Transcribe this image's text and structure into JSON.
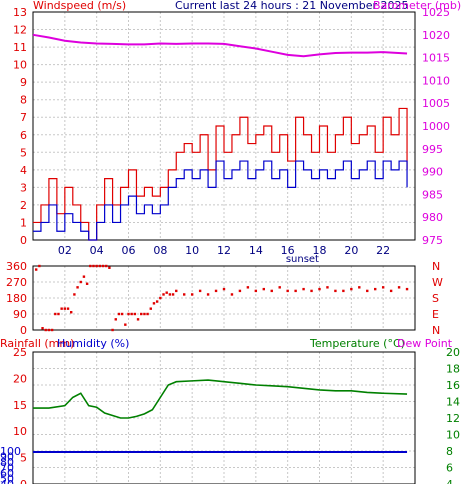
{
  "header": {
    "left_title": "Windspeed (m/s)",
    "center_title": "Current last 24 hours : 21 November 2025",
    "right_title": "Barometer (mb)"
  },
  "colors": {
    "red": "#e00000",
    "blue": "#0000cc",
    "magenta": "#dd00dd",
    "green": "#008000",
    "grid": "#c8c8c8",
    "frame": "#000000"
  },
  "chart_data": [
    {
      "type": "line",
      "name": "wind-barometer",
      "left_axis": {
        "label": "Windspeed (m/s)",
        "ylim": [
          0,
          13
        ],
        "ticks": [
          0,
          1,
          2,
          3,
          4,
          5,
          6,
          7,
          8,
          9,
          10,
          11,
          12,
          13
        ]
      },
      "right_axis": {
        "label": "Barometer (mb)",
        "ylim": [
          975,
          1025
        ],
        "ticks": [
          975,
          980,
          985,
          990,
          995,
          1000,
          1005,
          1010,
          1015,
          1020,
          1025
        ]
      },
      "x_axis": {
        "range_hours": [
          0,
          24
        ],
        "tick_labels": [
          "02",
          "04",
          "06",
          "08",
          "10",
          "12",
          "14",
          "16",
          "18",
          "20",
          "22"
        ],
        "tick_hours": [
          2,
          4,
          6,
          8,
          10,
          12,
          14,
          16,
          18,
          20,
          22
        ]
      },
      "annotation": {
        "text": "sunset",
        "hour": 16.8
      },
      "barometer": {
        "x": [
          0,
          1,
          2,
          3,
          4,
          5,
          6,
          7,
          8,
          9,
          10,
          11,
          12,
          13,
          14,
          15,
          16,
          17,
          18,
          19,
          20,
          21,
          22,
          23.5
        ],
        "y": [
          1020,
          1019.4,
          1018.7,
          1018.3,
          1018.1,
          1018.0,
          1017.9,
          1017.9,
          1018.1,
          1018.0,
          1018.1,
          1018.1,
          1018.0,
          1017.5,
          1017.0,
          1016.3,
          1015.6,
          1015.3,
          1015.7,
          1016.0,
          1016.1,
          1016.1,
          1016.2,
          1015.9
        ]
      },
      "wind_gust": {
        "x": [
          0,
          0.5,
          1,
          1.5,
          2,
          2.5,
          3,
          3.5,
          4,
          4.5,
          5,
          5.5,
          6,
          6.5,
          7,
          7.5,
          8,
          8.5,
          9,
          9.5,
          10,
          10.5,
          11,
          11.5,
          12,
          12.5,
          13,
          13.5,
          14,
          14.5,
          15,
          15.5,
          16,
          16.5,
          17,
          17.5,
          18,
          18.5,
          19,
          19.5,
          20,
          20.5,
          21,
          21.5,
          22,
          22.5,
          23,
          23.5
        ],
        "y": [
          1,
          2,
          3.5,
          1.5,
          3,
          2,
          1,
          0,
          2,
          3.5,
          2,
          3,
          4,
          2.5,
          3,
          2.5,
          3,
          4,
          5,
          5.5,
          5,
          6,
          4,
          6.5,
          5,
          6,
          7,
          5.5,
          6,
          6.5,
          5,
          6,
          4.5,
          7,
          6,
          5,
          6.5,
          5,
          6,
          7,
          5.5,
          6,
          6.5,
          5,
          7,
          6,
          7.5,
          4
        ]
      },
      "wind_avg": {
        "x": [
          0,
          0.5,
          1,
          1.5,
          2,
          2.5,
          3,
          3.5,
          4,
          4.5,
          5,
          5.5,
          6,
          6.5,
          7,
          7.5,
          8,
          8.5,
          9,
          9.5,
          10,
          10.5,
          11,
          11.5,
          12,
          12.5,
          13,
          13.5,
          14,
          14.5,
          15,
          15.5,
          16,
          16.5,
          17,
          17.5,
          18,
          18.5,
          19,
          19.5,
          20,
          20.5,
          21,
          21.5,
          22,
          22.5,
          23,
          23.5
        ],
        "y": [
          0.5,
          1,
          2,
          0.5,
          1.5,
          1,
          0.5,
          0,
          1,
          2,
          1,
          2,
          2.5,
          1.5,
          2,
          1.5,
          2,
          3,
          3.5,
          4,
          3.5,
          4,
          3,
          4.5,
          3.5,
          4,
          4.5,
          3.5,
          4,
          4.5,
          3.5,
          4,
          3,
          4.5,
          4,
          3.5,
          4,
          3.5,
          4,
          4.5,
          3.5,
          4,
          4.5,
          3.5,
          4.5,
          4,
          4.5,
          3
        ]
      }
    },
    {
      "type": "scatter",
      "name": "wind-direction",
      "left_axis": {
        "ylim": [
          0,
          360
        ],
        "ticks": [
          0,
          90,
          180,
          270,
          360
        ]
      },
      "right_labels": [
        "N",
        "W",
        "S",
        "E",
        "N"
      ],
      "points": {
        "x": [
          0.2,
          0.4,
          0.6,
          0.8,
          1.0,
          1.2,
          1.4,
          1.6,
          1.8,
          2.0,
          2.2,
          2.4,
          2.6,
          2.8,
          3.0,
          3.2,
          3.4,
          3.6,
          3.8,
          4.0,
          4.2,
          4.4,
          4.6,
          4.8,
          5.0,
          5.2,
          5.4,
          5.6,
          5.8,
          6.0,
          6.2,
          6.4,
          6.6,
          6.8,
          7.0,
          7.2,
          7.4,
          7.6,
          7.8,
          8.0,
          8.2,
          8.4,
          8.6,
          8.8,
          9.0,
          9.5,
          10,
          10.5,
          11,
          11.5,
          12,
          12.5,
          13,
          13.5,
          14,
          14.5,
          15,
          15.5,
          16,
          16.5,
          17,
          17.5,
          18,
          18.5,
          19,
          19.5,
          20,
          20.5,
          21,
          21.5,
          22,
          22.5,
          23,
          23.5
        ],
        "y": [
          340,
          360,
          10,
          0,
          0,
          0,
          90,
          90,
          120,
          120,
          120,
          100,
          200,
          240,
          270,
          300,
          260,
          360,
          360,
          360,
          360,
          360,
          360,
          350,
          0,
          60,
          90,
          90,
          30,
          90,
          90,
          90,
          60,
          90,
          90,
          90,
          120,
          150,
          160,
          180,
          200,
          210,
          200,
          200,
          220,
          200,
          200,
          220,
          200,
          220,
          230,
          200,
          220,
          240,
          220,
          230,
          220,
          240,
          220,
          220,
          230,
          220,
          230,
          240,
          220,
          220,
          230,
          240,
          220,
          230,
          240,
          220,
          240,
          230
        ]
      }
    },
    {
      "type": "line",
      "name": "temperature-humidity",
      "left_labels": {
        "title_left": "Rainfall (mm)",
        "title_mid": "Humidity (%)",
        "rain_ticks": [
          0,
          5,
          10,
          15,
          20,
          25
        ],
        "humidity_ticks": [
          40,
          50,
          60,
          70,
          80,
          90,
          100
        ],
        "humidity_mapping_note": ""
      },
      "right_axis": {
        "label": "Temperature (°C)",
        "ylim": [
          4,
          20
        ],
        "ticks": [
          4,
          6,
          8,
          10,
          12,
          14,
          16,
          18,
          20
        ]
      },
      "right_title2": "Dew Point",
      "humidity": {
        "x": [
          0,
          23.5
        ],
        "y": [
          100,
          100
        ]
      },
      "temperature": {
        "x": [
          0,
          1,
          2,
          2.5,
          3,
          3.5,
          4,
          4.5,
          5,
          5.5,
          6,
          6.5,
          7,
          7.5,
          8,
          8.5,
          9,
          10,
          11,
          12,
          13,
          14,
          15,
          16,
          17,
          18,
          19,
          20,
          21,
          22,
          23.5
        ],
        "y": [
          13.2,
          13.2,
          13.5,
          14.5,
          15.0,
          13.5,
          13.3,
          12.6,
          12.3,
          12.0,
          12.0,
          12.2,
          12.5,
          13.0,
          14.5,
          16.0,
          16.4,
          16.5,
          16.6,
          16.4,
          16.2,
          16.0,
          15.9,
          15.8,
          15.6,
          15.4,
          15.3,
          15.3,
          15.1,
          15.0,
          14.9
        ]
      }
    }
  ]
}
